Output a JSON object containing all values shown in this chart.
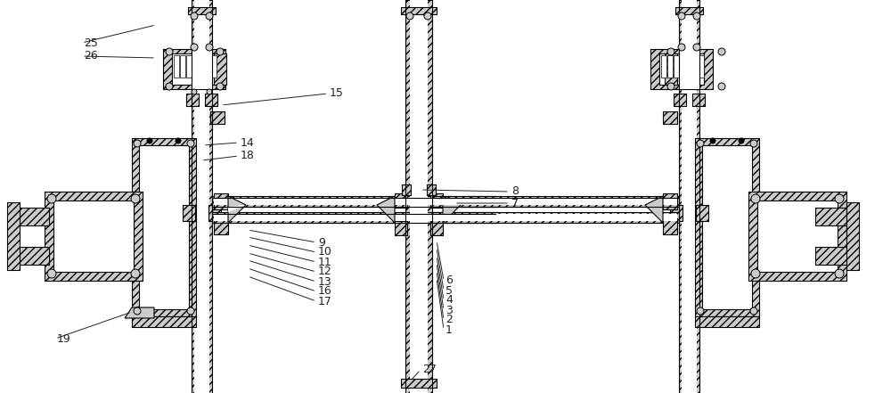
{
  "bg_color": "#ffffff",
  "fig_width": 10.0,
  "fig_height": 4.41,
  "annotations": [
    [
      "25",
      92,
      48,
      175,
      28
    ],
    [
      "26",
      92,
      63,
      175,
      65
    ],
    [
      "15",
      368,
      105,
      248,
      118
    ],
    [
      "14",
      268,
      160,
      228,
      163
    ],
    [
      "18",
      268,
      175,
      226,
      180
    ],
    [
      "19",
      62,
      380,
      148,
      350
    ],
    [
      "9",
      355,
      272,
      278,
      258
    ],
    [
      "10",
      355,
      283,
      278,
      266
    ],
    [
      "11",
      355,
      294,
      278,
      275
    ],
    [
      "12",
      355,
      305,
      278,
      284
    ],
    [
      "13",
      355,
      316,
      278,
      292
    ],
    [
      "16",
      355,
      327,
      278,
      301
    ],
    [
      "17",
      355,
      338,
      278,
      310
    ],
    [
      "8",
      572,
      215,
      472,
      213
    ],
    [
      "7",
      572,
      228,
      510,
      228
    ],
    [
      "6",
      498,
      315,
      490,
      270
    ],
    [
      "5",
      498,
      326,
      490,
      278
    ],
    [
      "4",
      498,
      337,
      490,
      287
    ],
    [
      "3",
      498,
      348,
      490,
      295
    ],
    [
      "2",
      498,
      359,
      490,
      304
    ],
    [
      "1",
      498,
      370,
      490,
      312
    ],
    [
      "27",
      472,
      415,
      460,
      428
    ]
  ]
}
